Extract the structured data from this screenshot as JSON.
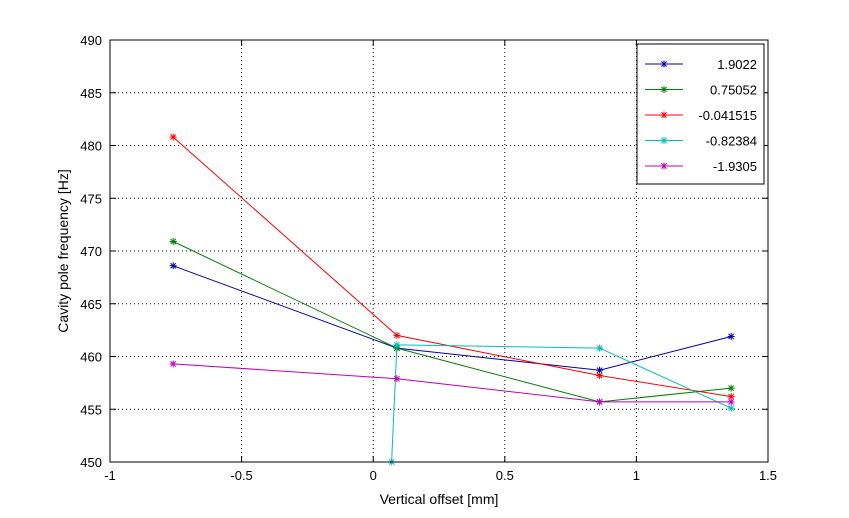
{
  "chart_data": {
    "type": "line",
    "title": "",
    "xlabel": "Vertical offset [mm]",
    "ylabel": "Cavity pole frequency [Hz]",
    "xlim": [
      -1,
      1.5
    ],
    "ylim": [
      450,
      490
    ],
    "xticks": [
      -1,
      -0.5,
      0,
      0.5,
      1,
      1.5
    ],
    "xtick_labels": [
      "-1",
      "-0.5",
      "0",
      "0.5",
      "1",
      "1.5"
    ],
    "yticks": [
      450,
      455,
      460,
      465,
      470,
      475,
      480,
      485,
      490
    ],
    "ytick_labels": [
      "450",
      "455",
      "460",
      "465",
      "470",
      "475",
      "480",
      "485",
      "490"
    ],
    "grid": true,
    "grid_style": "dotted",
    "marker": "asterisk",
    "legend_position": "top-right",
    "series": [
      {
        "name": "1.9022",
        "color": "#0000aa",
        "x": [
          -0.76,
          0.09,
          0.86,
          1.36
        ],
        "y": [
          468.6,
          460.8,
          458.7,
          461.9
        ]
      },
      {
        "name": "0.75052",
        "color": "#008000",
        "x": [
          -0.76,
          0.09,
          0.86,
          1.36
        ],
        "y": [
          470.9,
          460.8,
          455.7,
          457.0
        ]
      },
      {
        "name": "-0.041515",
        "color": "#ff0000",
        "x": [
          -0.76,
          0.09,
          0.86,
          1.36
        ],
        "y": [
          480.8,
          462.0,
          458.2,
          456.2
        ]
      },
      {
        "name": "-0.82384",
        "color": "#00bfbf",
        "x": [
          0.07,
          0.09,
          0.86,
          1.36
        ],
        "y": [
          450.0,
          461.1,
          460.8,
          455.1
        ]
      },
      {
        "name": "-1.9305",
        "color": "#bf00bf",
        "x": [
          -0.76,
          0.09,
          0.86,
          1.36
        ],
        "y": [
          459.3,
          457.9,
          455.7,
          455.7
        ]
      }
    ]
  }
}
